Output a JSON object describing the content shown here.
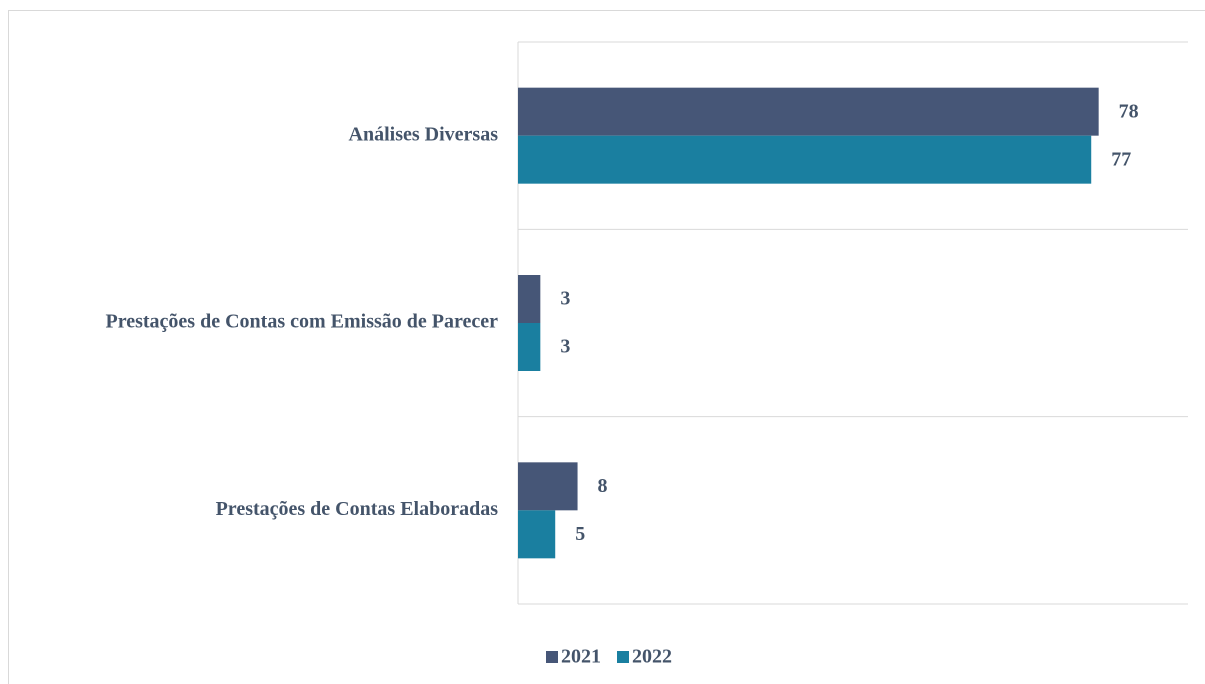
{
  "chart_data": {
    "type": "bar",
    "orientation": "horizontal",
    "categories": [
      "Análises Diversas",
      "Prestações de Contas com Emissão de Parecer",
      "Prestações de Contas Elaboradas"
    ],
    "series": [
      {
        "name": "2021",
        "color": "#465677",
        "values": [
          78,
          3,
          8
        ]
      },
      {
        "name": "2022",
        "color": "#1a7fa0",
        "values": [
          77,
          3,
          5
        ]
      }
    ],
    "xlim": [
      0,
      90
    ],
    "legend": "bottom"
  }
}
